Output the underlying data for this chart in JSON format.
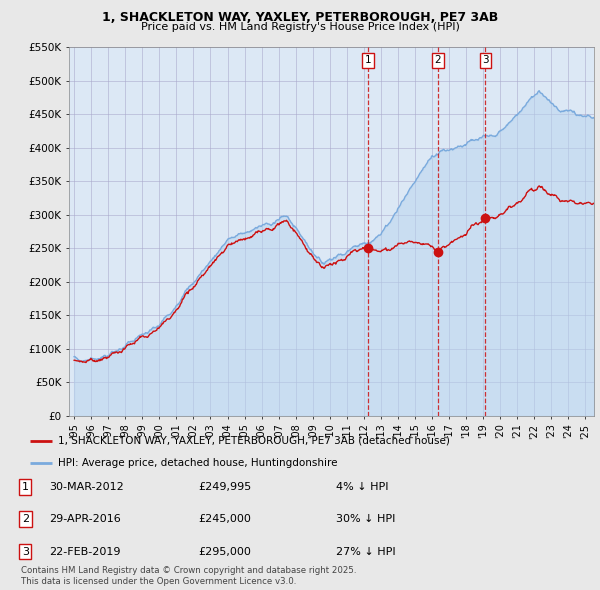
{
  "title_line1": "1, SHACKLETON WAY, YAXLEY, PETERBOROUGH, PE7 3AB",
  "title_line2": "Price paid vs. HM Land Registry's House Price Index (HPI)",
  "background_color": "#e8e8e8",
  "plot_bg_color": "#dce8f5",
  "hpi_color": "#7aaadd",
  "price_color": "#cc1111",
  "dashed_color": "#cc1111",
  "ylim": [
    0,
    550000
  ],
  "yticks": [
    0,
    50000,
    100000,
    150000,
    200000,
    250000,
    300000,
    350000,
    400000,
    450000,
    500000,
    550000
  ],
  "ytick_labels": [
    "£0",
    "£50K",
    "£100K",
    "£150K",
    "£200K",
    "£250K",
    "£300K",
    "£350K",
    "£400K",
    "£450K",
    "£500K",
    "£550K"
  ],
  "sales": [
    {
      "date_num": 2012.25,
      "price": 249995,
      "label": "1"
    },
    {
      "date_num": 2016.33,
      "price": 245000,
      "label": "2"
    },
    {
      "date_num": 2019.13,
      "price": 295000,
      "label": "3"
    }
  ],
  "legend_entries": [
    {
      "label": "1, SHACKLETON WAY, YAXLEY, PETERBOROUGH, PE7 3AB (detached house)",
      "color": "#cc1111"
    },
    {
      "label": "HPI: Average price, detached house, Huntingdonshire",
      "color": "#7aaadd"
    }
  ],
  "table_rows": [
    {
      "num": "1",
      "date": "30-MAR-2012",
      "price": "£249,995",
      "pct": "4% ↓ HPI"
    },
    {
      "num": "2",
      "date": "29-APR-2016",
      "price": "£245,000",
      "pct": "30% ↓ HPI"
    },
    {
      "num": "3",
      "date": "22-FEB-2019",
      "price": "£295,000",
      "pct": "27% ↓ HPI"
    }
  ],
  "footer": "Contains HM Land Registry data © Crown copyright and database right 2025.\nThis data is licensed under the Open Government Licence v3.0.",
  "xmin": 1994.7,
  "xmax": 2025.5
}
